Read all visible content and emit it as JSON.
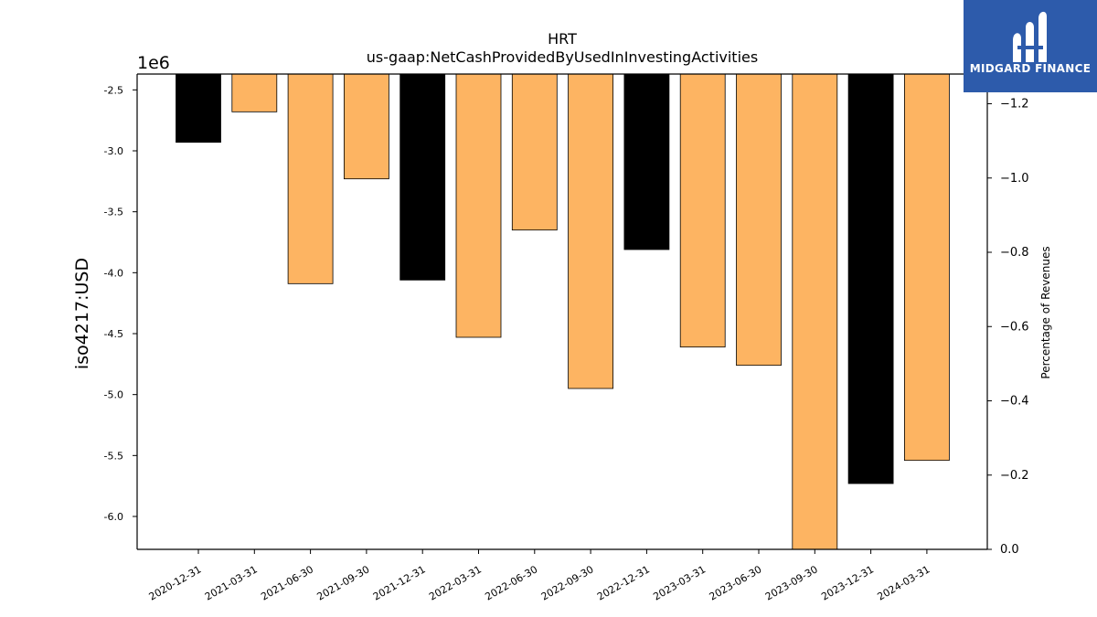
{
  "brand": {
    "name": "MIDGARD FINANCE",
    "bg_color": "#2d5bab"
  },
  "chart_data": {
    "type": "bar",
    "title": "HRT",
    "subtitle": "us-gaap:NetCashProvidedByUsedInInvestingActivities",
    "ylabel": "iso4217:USD",
    "y2label": "Percentage of Revenues",
    "offset_label": "1e6",
    "categories": [
      "2020-12-31",
      "2021-03-31",
      "2021-06-30",
      "2021-09-30",
      "2021-12-31",
      "2022-03-31",
      "2022-06-30",
      "2022-09-30",
      "2022-12-31",
      "2023-03-31",
      "2023-06-30",
      "2023-09-30",
      "2023-12-31",
      "2024-03-31"
    ],
    "values": [
      -2930000,
      -2680000,
      -4090000,
      -3230000,
      -4060000,
      -4530000,
      -3650000,
      -4950000,
      -3810000,
      -4610000,
      -4760000,
      -6300000,
      -5730000,
      -5540000
    ],
    "bar_colors": [
      "#000000",
      "#fdb462",
      "#fdb462",
      "#fdb462",
      "#000000",
      "#fdb462",
      "#fdb462",
      "#fdb462",
      "#000000",
      "#fdb462",
      "#fdb462",
      "#fdb462",
      "#000000",
      "#fdb462"
    ],
    "ylim": [
      -6270000,
      -2370000
    ],
    "yticks": [
      -2500000,
      -3000000,
      -3500000,
      -4000000,
      -4500000,
      -5000000,
      -5500000,
      -6000000
    ],
    "ytick_labels": [
      "-2.5",
      "-3.0",
      "-3.5",
      "-4.0",
      "-4.5",
      "-5.0",
      "-5.5",
      "-6.0"
    ],
    "y2lim": [
      0,
      1.28
    ],
    "y2ticks": [
      -1.2,
      -1.0,
      -0.8,
      -0.6,
      -0.4,
      -0.2,
      0.0
    ],
    "y2tick_labels": [
      "−1.2",
      "−1.0",
      "−0.8",
      "−0.6",
      "−0.4",
      "−0.2",
      "0.0"
    ],
    "grid": false,
    "legend": "none"
  }
}
